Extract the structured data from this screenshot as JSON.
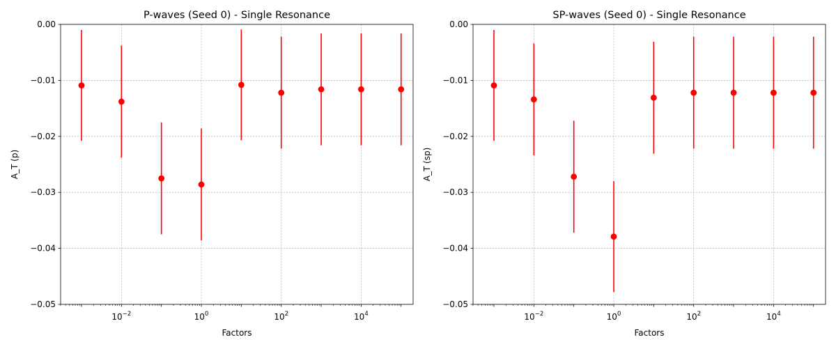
{
  "chart_data": [
    {
      "type": "scatter",
      "title": "P-waves (Seed 0) - Single Resonance",
      "xlabel": "Factors",
      "ylabel": "A_T (p)",
      "xscale": "log",
      "xlim": [
        0.0003,
        200000
      ],
      "ylim": [
        -0.05,
        0.0
      ],
      "grid": true,
      "marker_color": "#ff0000",
      "x": [
        0.001,
        0.01,
        0.1,
        1,
        10,
        100,
        1000,
        10000,
        100000
      ],
      "y": [
        -0.0109,
        -0.0138,
        -0.0275,
        -0.0286,
        -0.0108,
        -0.0122,
        -0.0116,
        -0.0116,
        -0.0116
      ],
      "yerr": [
        0.0099,
        0.01,
        0.01,
        0.01,
        0.0099,
        0.01,
        0.01,
        0.01,
        0.01
      ],
      "xticks": [
        {
          "base": "10",
          "exp": "−2",
          "value": 0.01
        },
        {
          "base": "10",
          "exp": "0",
          "value": 1
        },
        {
          "base": "10",
          "exp": "2",
          "value": 100
        },
        {
          "base": "10",
          "exp": "4",
          "value": 10000
        }
      ],
      "yticks": [
        {
          "label": "0.00",
          "value": 0.0
        },
        {
          "label": "−0.01",
          "value": -0.01
        },
        {
          "label": "−0.02",
          "value": -0.02
        },
        {
          "label": "−0.03",
          "value": -0.03
        },
        {
          "label": "−0.04",
          "value": -0.04
        },
        {
          "label": "−0.05",
          "value": -0.05
        }
      ]
    },
    {
      "type": "scatter",
      "title": "SP-waves (Seed 0) - Single Resonance",
      "xlabel": "Factors",
      "ylabel": "A_T (sp)",
      "xscale": "log",
      "xlim": [
        0.0003,
        200000
      ],
      "ylim": [
        -0.05,
        0.0
      ],
      "grid": true,
      "marker_color": "#ff0000",
      "x": [
        0.001,
        0.01,
        0.1,
        1,
        10,
        100,
        1000,
        10000,
        100000
      ],
      "y": [
        -0.0109,
        -0.0134,
        -0.0272,
        -0.0379,
        -0.0131,
        -0.0122,
        -0.0122,
        -0.0122,
        -0.0122
      ],
      "yerr": [
        0.0099,
        0.01,
        0.01,
        0.0099,
        0.01,
        0.01,
        0.01,
        0.01,
        0.01
      ],
      "xticks": [
        {
          "base": "10",
          "exp": "−2",
          "value": 0.01
        },
        {
          "base": "10",
          "exp": "0",
          "value": 1
        },
        {
          "base": "10",
          "exp": "2",
          "value": 100
        },
        {
          "base": "10",
          "exp": "4",
          "value": 10000
        }
      ],
      "yticks": [
        {
          "label": "0.00",
          "value": 0.0
        },
        {
          "label": "−0.01",
          "value": -0.01
        },
        {
          "label": "−0.02",
          "value": -0.02
        },
        {
          "label": "−0.03",
          "value": -0.03
        },
        {
          "label": "−0.04",
          "value": -0.04
        },
        {
          "label": "−0.05",
          "value": -0.05
        }
      ]
    }
  ]
}
